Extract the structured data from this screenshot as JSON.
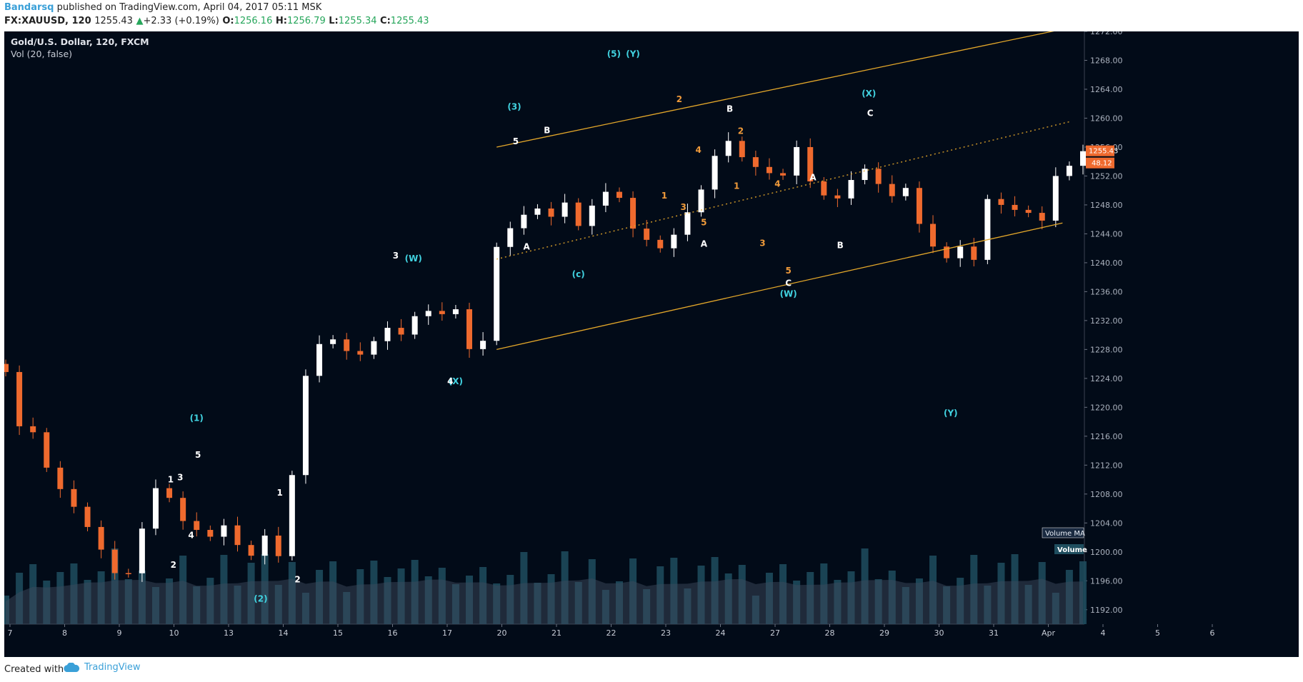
{
  "header": {
    "author": "Bandarsq",
    "published": "published on TradingView.com, April 04, 2017 05:11 MSK",
    "symbol": "FX:XAUUSD, 120",
    "last": "1255.43",
    "change": "+2.33 (+0.19%)",
    "o_label": "O:",
    "o": "1256.16",
    "h_label": "H:",
    "h": "1256.79",
    "l_label": "L:",
    "l": "1255.34",
    "c_label": "C:",
    "c": "1255.43"
  },
  "legend": {
    "title": "Gold/U.S. Dollar, 120, FXCM",
    "indicator": "Vol (20, false)"
  },
  "footer": {
    "created": "Created with",
    "brand": "TradingView"
  },
  "colors": {
    "background": "#020b18",
    "up_candle": "#ffffff",
    "down_candle": "#ef6a2e",
    "channel": "#e3a72a",
    "wave_cyan": "#41d2e0",
    "wave_white": "#ffffff",
    "wave_orange": "#ef9a3a",
    "volume": "#1f4e5f",
    "volume_ma": "#3b4a5c"
  },
  "chart_data": {
    "type": "candlestick",
    "symbol": "XAUUSD",
    "timeframe": "120",
    "ylim": [
      1190,
      1272
    ],
    "y_ticks": [
      "1192.00",
      "1196.00",
      "1200.00",
      "1204.00",
      "1208.00",
      "1212.00",
      "1216.00",
      "1220.00",
      "1224.00",
      "1228.00",
      "1232.00",
      "1236.00",
      "1240.00",
      "1244.00",
      "1248.00",
      "1252.00",
      "1256.00",
      "1260.00",
      "1264.00",
      "1268.00",
      "1272.00"
    ],
    "x_ticks": [
      "7",
      "8",
      "9",
      "10",
      "13",
      "14",
      "15",
      "16",
      "17",
      "20",
      "21",
      "22",
      "23",
      "24",
      "27",
      "28",
      "29",
      "30",
      "31",
      "Apr",
      "4",
      "5",
      "6"
    ],
    "price_label": "1255.43",
    "volume_badge": "48.12",
    "volume_ma_label": "Volume MA",
    "volume_label": "Volume",
    "price_path": [
      [
        0,
        1226
      ],
      [
        0.7,
        1226.5
      ],
      [
        1.2,
        1223
      ],
      [
        1.6,
        1220
      ],
      [
        2.0,
        1216
      ],
      [
        2.6,
        1218
      ],
      [
        3.0,
        1215
      ],
      [
        3.5,
        1213
      ],
      [
        4.0,
        1210
      ],
      [
        5.0,
        1208
      ],
      [
        6.0,
        1205
      ],
      [
        7.0,
        1202
      ],
      [
        7.8,
        1199
      ],
      [
        8.4,
        1197
      ],
      [
        9.0,
        1196
      ],
      [
        9.6,
        1198
      ],
      [
        10.2,
        1203
      ],
      [
        10.8,
        1206
      ],
      [
        11.2,
        1209
      ],
      [
        11.5,
        1210
      ],
      [
        12.0,
        1208
      ],
      [
        12.6,
        1205
      ],
      [
        13.2,
        1204
      ],
      [
        14.0,
        1203
      ],
      [
        15.0,
        1202
      ],
      [
        16.0,
        1204
      ],
      [
        16.5,
        1202
      ],
      [
        17.0,
        1200
      ],
      [
        17.6,
        1199
      ],
      [
        18.4,
        1203
      ],
      [
        19.0,
        1201
      ],
      [
        19.7,
        1199
      ],
      [
        20.2,
        1202
      ],
      [
        20.6,
        1214
      ],
      [
        21.0,
        1221
      ],
      [
        21.5,
        1225
      ],
      [
        22.2,
        1228
      ],
      [
        22.8,
        1231
      ],
      [
        23.4,
        1229
      ],
      [
        24.0,
        1228
      ],
      [
        25.0,
        1227
      ],
      [
        26.0,
        1229
      ],
      [
        27.0,
        1231
      ],
      [
        28.0,
        1230
      ],
      [
        29.0,
        1233
      ],
      [
        29.6,
        1234
      ],
      [
        30.2,
        1232
      ],
      [
        30.8,
        1233
      ],
      [
        31.4,
        1234
      ],
      [
        32.0,
        1233
      ],
      [
        32.6,
        1228
      ],
      [
        33.0,
        1227
      ],
      [
        33.5,
        1229
      ],
      [
        34.0,
        1233
      ],
      [
        34.4,
        1242
      ],
      [
        35.0,
        1244
      ],
      [
        35.5,
        1245
      ],
      [
        36.0,
        1246
      ],
      [
        36.5,
        1247
      ],
      [
        37.0,
        1248
      ],
      [
        37.5,
        1247
      ],
      [
        38.0,
        1246
      ],
      [
        38.5,
        1247
      ],
      [
        39.0,
        1249
      ],
      [
        39.5,
        1246
      ],
      [
        40.0,
        1245
      ],
      [
        40.5,
        1246
      ],
      [
        41.0,
        1248
      ],
      [
        41.5,
        1249
      ],
      [
        42.0,
        1250
      ],
      [
        42.5,
        1251
      ],
      [
        43.0,
        1248
      ],
      [
        43.6,
        1245
      ],
      [
        44.2,
        1244
      ],
      [
        44.8,
        1243
      ],
      [
        45.4,
        1242
      ],
      [
        46.0,
        1242
      ],
      [
        46.6,
        1244
      ],
      [
        47.2,
        1246
      ],
      [
        47.8,
        1248
      ],
      [
        48.4,
        1250
      ],
      [
        49.0,
        1253
      ],
      [
        49.6,
        1256
      ],
      [
        50.2,
        1257
      ],
      [
        50.8,
        1256
      ],
      [
        51.4,
        1254
      ],
      [
        52.0,
        1253
      ],
      [
        52.6,
        1254
      ],
      [
        53.2,
        1252
      ],
      [
        53.8,
        1251
      ],
      [
        54.4,
        1254
      ],
      [
        54.9,
        1256
      ],
      [
        55.4,
        1256
      ],
      [
        56.0,
        1250
      ],
      [
        56.6,
        1250
      ],
      [
        57.2,
        1248
      ],
      [
        57.8,
        1249
      ],
      [
        58.4,
        1251
      ],
      [
        59.0,
        1252
      ],
      [
        59.6,
        1253
      ],
      [
        60.2,
        1252
      ],
      [
        60.8,
        1250
      ],
      [
        61.4,
        1249
      ],
      [
        62.0,
        1251
      ],
      [
        62.6,
        1250
      ],
      [
        63.2,
        1246
      ],
      [
        63.8,
        1243
      ],
      [
        64.4,
        1242
      ],
      [
        65.0,
        1241
      ],
      [
        65.5,
        1240
      ],
      [
        66.0,
        1242
      ],
      [
        66.5,
        1243
      ],
      [
        67.0,
        1240
      ],
      [
        67.5,
        1244
      ],
      [
        68.0,
        1249
      ],
      [
        68.5,
        1248
      ],
      [
        69.0,
        1248
      ],
      [
        69.5,
        1248
      ],
      [
        70.0,
        1247
      ],
      [
        70.5,
        1248
      ],
      [
        71.0,
        1246
      ],
      [
        71.5,
        1245
      ],
      [
        72.0,
        1247
      ],
      [
        72.5,
        1252
      ],
      [
        73.0,
        1252
      ],
      [
        73.5,
        1253
      ],
      [
        74.0,
        1256
      ],
      [
        74.5,
        1255.43
      ]
    ]
  },
  "annotations": [
    {
      "text": "(5)",
      "cls": "cyan",
      "d": [
        44.6,
        1268.5
      ]
    },
    {
      "text": "(Y)",
      "cls": "cyan",
      "d": [
        46.0,
        1268.5
      ]
    },
    {
      "text": "(3)",
      "cls": "cyan",
      "d": [
        37.3,
        1261.2
      ]
    },
    {
      "text": "(W)",
      "cls": "cyan",
      "d": [
        29.9,
        1240.2
      ]
    },
    {
      "text": "(X)",
      "cls": "cyan",
      "d": [
        33.0,
        1223.2
      ]
    },
    {
      "text": "(c)",
      "cls": "cyan",
      "d": [
        42.0,
        1238
      ]
    },
    {
      "text": "(W)",
      "cls": "cyan",
      "d": [
        57.4,
        1235.3
      ]
    },
    {
      "text": "(X)",
      "cls": "cyan",
      "d": [
        63.3,
        1263.0
      ]
    },
    {
      "text": "(Y)",
      "cls": "cyan",
      "d": [
        69.3,
        1218.8
      ]
    },
    {
      "text": "(1)",
      "cls": "cyan",
      "d": [
        14.0,
        1218.1
      ]
    },
    {
      "text": "(2)",
      "cls": "cyan",
      "d": [
        18.7,
        1193.1
      ]
    },
    {
      "text": "3",
      "cls": "white",
      "d": [
        28.6,
        1240.6
      ]
    },
    {
      "text": "4",
      "cls": "white",
      "d": [
        32.6,
        1223.2
      ]
    },
    {
      "text": "5",
      "cls": "white",
      "d": [
        37.4,
        1256.4
      ]
    },
    {
      "text": "B",
      "cls": "white",
      "d": [
        39.7,
        1257.9
      ]
    },
    {
      "text": "A",
      "cls": "white",
      "d": [
        38.2,
        1241.8
      ]
    },
    {
      "text": "B",
      "cls": "white",
      "d": [
        53.1,
        1260.9
      ]
    },
    {
      "text": "A",
      "cls": "white",
      "d": [
        51.2,
        1242.2
      ]
    },
    {
      "text": "C",
      "cls": "white",
      "d": [
        57.4,
        1236.8
      ]
    },
    {
      "text": "A",
      "cls": "white",
      "d": [
        59.2,
        1251.4
      ]
    },
    {
      "text": "B",
      "cls": "white",
      "d": [
        61.2,
        1242.0
      ]
    },
    {
      "text": "C",
      "cls": "white",
      "d": [
        63.4,
        1260.3
      ]
    },
    {
      "text": "1",
      "cls": "white",
      "d": [
        12.1,
        1209.6
      ]
    },
    {
      "text": "3",
      "cls": "white",
      "d": [
        12.8,
        1209.9
      ]
    },
    {
      "text": "4",
      "cls": "white",
      "d": [
        13.6,
        1201.9
      ]
    },
    {
      "text": "5",
      "cls": "white",
      "d": [
        14.1,
        1213.0
      ]
    },
    {
      "text": "2",
      "cls": "white",
      "d": [
        12.3,
        1197.8
      ]
    },
    {
      "text": "1",
      "cls": "white",
      "d": [
        20.1,
        1207.8
      ]
    },
    {
      "text": "2",
      "cls": "white",
      "d": [
        21.4,
        1195.8
      ]
    },
    {
      "text": "2",
      "cls": "orange",
      "d": [
        49.4,
        1262.2
      ]
    },
    {
      "text": "4",
      "cls": "orange",
      "d": [
        50.8,
        1255.2
      ]
    },
    {
      "text": "1",
      "cls": "orange",
      "d": [
        48.3,
        1248.9
      ]
    },
    {
      "text": "3",
      "cls": "orange",
      "d": [
        49.7,
        1247.3
      ]
    },
    {
      "text": "5",
      "cls": "orange",
      "d": [
        51.2,
        1245.2
      ]
    },
    {
      "text": "2",
      "cls": "orange",
      "d": [
        53.9,
        1257.8
      ]
    },
    {
      "text": "1",
      "cls": "orange",
      "d": [
        53.6,
        1250.2
      ]
    },
    {
      "text": "4",
      "cls": "orange",
      "d": [
        56.6,
        1250.5
      ]
    },
    {
      "text": "3",
      "cls": "orange",
      "d": [
        55.5,
        1242.3
      ]
    },
    {
      "text": "5",
      "cls": "orange",
      "d": [
        57.4,
        1238.5
      ]
    }
  ]
}
